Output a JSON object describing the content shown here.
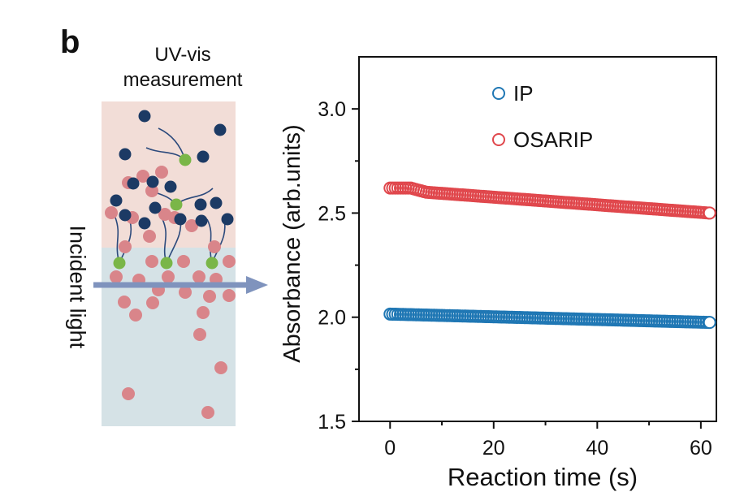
{
  "panel_label": "b",
  "schematic": {
    "title_line1": "UV-vis",
    "title_line2": "measurement",
    "incident_label": "Incident light",
    "colors": {
      "upper_phase": "#f2ddd7",
      "lower_phase": "#d5e2e6",
      "dark_particle": "#1c3a64",
      "pink_particle": "#d9858a",
      "green_particle": "#7ab648",
      "arrow": "#7f93bd"
    }
  },
  "chart_data": {
    "type": "scatter",
    "xlabel": "Reaction time (s)",
    "ylabel": "Absorbance (arb.units)",
    "xlim": [
      -6,
      63
    ],
    "ylim": [
      1.5,
      3.25
    ],
    "xticks": [
      "0",
      "20",
      "40",
      "60"
    ],
    "yticks": [
      "1.5",
      "2.0",
      "2.5",
      "3.0"
    ],
    "legend_position": "top-center",
    "marker": "open-circle",
    "series": [
      {
        "name": "IP",
        "color": "#1f77b4",
        "x_start": 0,
        "x_end": 61.7,
        "x_step": 0.5,
        "y_points": [
          [
            0,
            2.015
          ],
          [
            61.7,
            1.975
          ]
        ]
      },
      {
        "name": "OSARIP",
        "color": "#e0474c",
        "x_start": 0,
        "x_end": 61.7,
        "x_step": 0.5,
        "y_points": [
          [
            0,
            2.62
          ],
          [
            4,
            2.62
          ],
          [
            7,
            2.6
          ],
          [
            61.7,
            2.5
          ]
        ]
      }
    ]
  }
}
